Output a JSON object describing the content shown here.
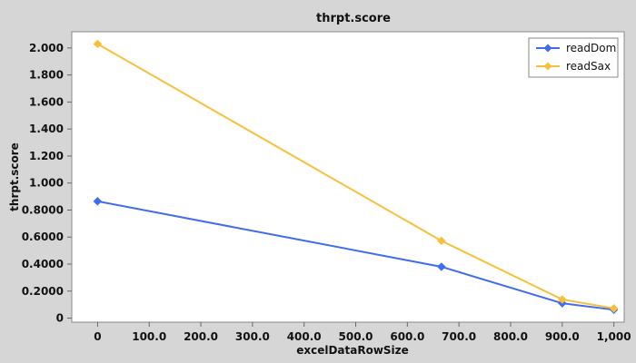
{
  "chart_data": {
    "type": "line",
    "title": "thrpt.score",
    "xlabel": "excelDataRowSize",
    "ylabel": "thrpt.score",
    "xlim": [
      -50,
      1020
    ],
    "ylim": [
      -0.03,
      2.12
    ],
    "x_ticks": [
      0,
      100,
      200,
      300,
      400,
      500,
      600,
      700,
      800,
      900,
      1000
    ],
    "x_tick_labels": [
      "0",
      "100.0",
      "200.0",
      "300.0",
      "400.0",
      "500.0",
      "600.0",
      "700.0",
      "800.0",
      "900.0",
      "1,000"
    ],
    "y_ticks": [
      0,
      0.2,
      0.4,
      0.6,
      0.8,
      1.0,
      1.2,
      1.4,
      1.6,
      1.8,
      2.0
    ],
    "y_tick_labels": [
      "0",
      "0.2000",
      "0.4000",
      "0.6000",
      "0.8000",
      "1.000",
      "1.200",
      "1.400",
      "1.600",
      "1.800",
      "2.000"
    ],
    "grid": false,
    "legend_position": "top-right",
    "series": [
      {
        "name": "readDom",
        "color": "#3f6cf0",
        "marker": "diamond",
        "points": [
          [
            0,
            0.865
          ],
          [
            666,
            0.38
          ],
          [
            900,
            0.11
          ],
          [
            1000,
            0.062
          ]
        ]
      },
      {
        "name": "readSax",
        "color": "#f8c03a",
        "marker": "diamond",
        "points": [
          [
            0,
            2.03
          ],
          [
            666,
            0.572
          ],
          [
            900,
            0.138
          ],
          [
            1000,
            0.072
          ]
        ]
      }
    ]
  }
}
